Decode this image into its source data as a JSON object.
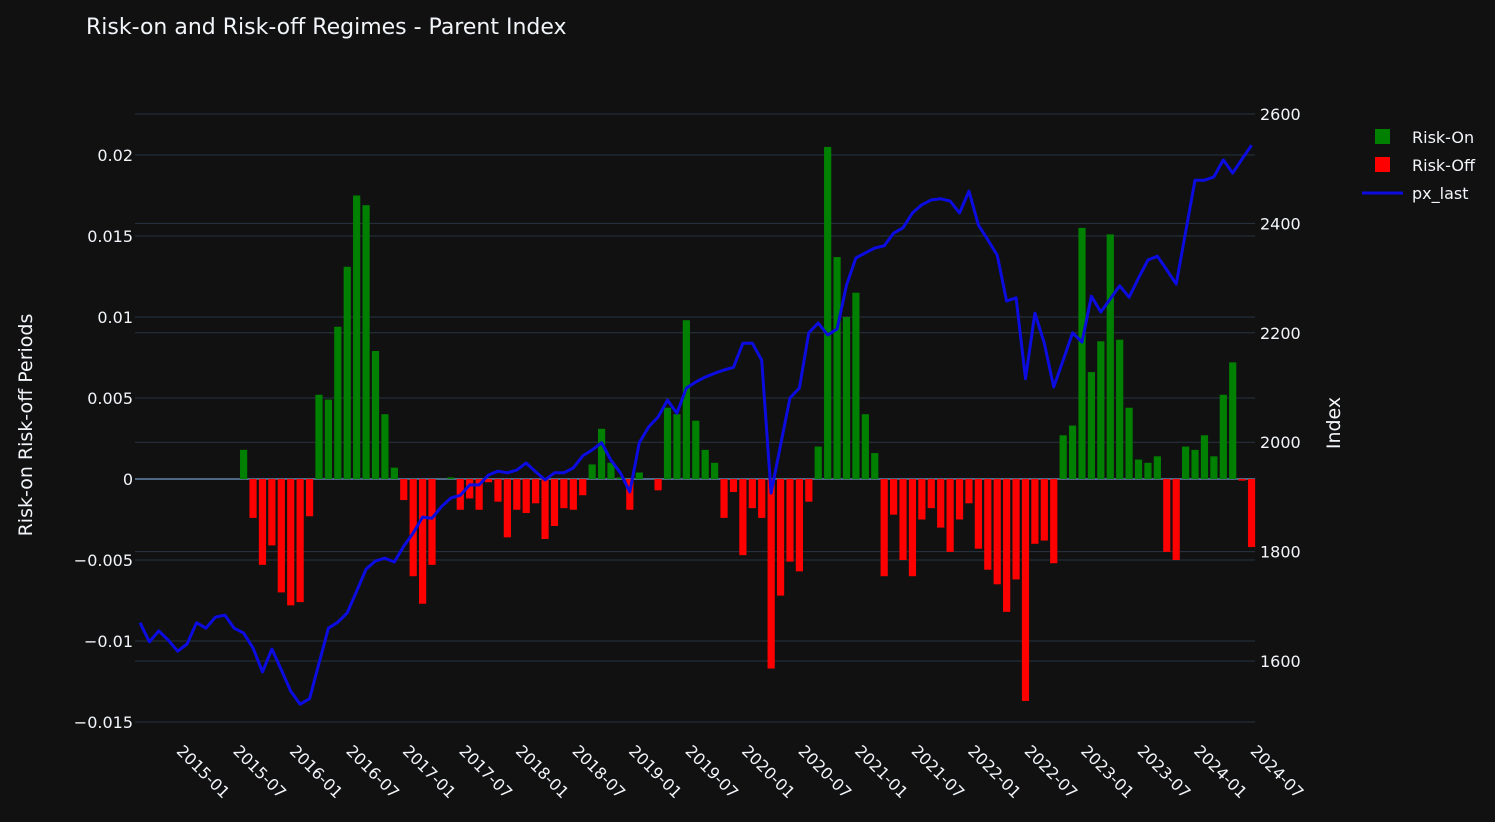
{
  "chart_data": {
    "type": "bar+line",
    "title": "Risk-on and Risk-off Regimes - Parent Index",
    "xlabel": "",
    "ylabel": "Risk-on Risk-off Periods",
    "y2label": "Index",
    "ylim": [
      -0.0155,
      0.0225
    ],
    "y2lim": [
      1520,
      2640
    ],
    "yticks": [
      -0.015,
      -0.01,
      -0.005,
      0,
      0.005,
      0.01,
      0.015,
      0.02
    ],
    "ytick_labels": [
      "−0.015",
      "−0.01",
      "−0.005",
      "0",
      "0.005",
      "0.01",
      "0.015",
      "0.02"
    ],
    "y2ticks": [
      1600,
      1800,
      2000,
      2200,
      2400,
      2600
    ],
    "y2tick_labels": [
      "1600",
      "1800",
      "2000",
      "2200",
      "2400",
      "2600"
    ],
    "xtick_labels": [
      "2015-01",
      "2015-07",
      "2016-01",
      "2016-07",
      "2017-01",
      "2017-07",
      "2018-01",
      "2018-07",
      "2019-01",
      "2019-07",
      "2020-01",
      "2020-07",
      "2021-01",
      "2021-07",
      "2022-01",
      "2022-07",
      "2023-01",
      "2023-07",
      "2024-01",
      "2024-07"
    ],
    "x_start": "2014-09",
    "x_frequency": "monthly",
    "grid": true,
    "legend_position": "top-right",
    "legend": [
      {
        "name": "Risk-On",
        "color": "#008000",
        "kind": "bar"
      },
      {
        "name": "Risk-Off",
        "color": "#ff0000",
        "kind": "bar"
      },
      {
        "name": "px_last",
        "color": "#0c0ce0",
        "kind": "line"
      }
    ],
    "regime_values_note": "positive = Risk-On, negative = Risk-Off",
    "regime_values": [
      0,
      0,
      0,
      0,
      0,
      0,
      0,
      0,
      0,
      0,
      0,
      0.0018,
      -0.0024,
      -0.0053,
      -0.0041,
      -0.007,
      -0.0078,
      -0.0076,
      -0.0023,
      0.0052,
      0.0049,
      0.0094,
      0.0131,
      0.0175,
      0.0169,
      0.0079,
      0.004,
      0.0007,
      -0.0013,
      -0.006,
      -0.0077,
      -0.0053,
      0,
      0.0001,
      -0.0019,
      -0.0012,
      -0.0019,
      -0.0002,
      -0.0014,
      -0.0036,
      -0.0019,
      -0.0021,
      -0.0015,
      -0.0037,
      -0.0029,
      -0.0018,
      -0.0019,
      -0.001,
      0.0009,
      0.0031,
      0.001,
      0.0001,
      -0.0019,
      0.0004,
      0,
      -0.0007,
      0.0044,
      0.004,
      0.0098,
      0.0036,
      0.0018,
      0.001,
      -0.0024,
      -0.0008,
      -0.0047,
      -0.0018,
      -0.0024,
      -0.0117,
      -0.0072,
      -0.0051,
      -0.0057,
      -0.0014,
      0.002,
      0.0205,
      0.0137,
      0.01,
      0.0115,
      0.004,
      0.0016,
      -0.006,
      -0.0022,
      -0.005,
      -0.006,
      -0.0025,
      -0.0018,
      -0.003,
      -0.0045,
      -0.0025,
      -0.0015,
      -0.0043,
      -0.0056,
      -0.0065,
      -0.0082,
      -0.0062,
      -0.0137,
      -0.004,
      -0.0038,
      -0.0052,
      0.0027,
      0.0033,
      0.0155,
      0.0066,
      0.0085,
      0.0151,
      0.0086,
      0.0044,
      0.0012,
      0.001,
      0.0014,
      -0.0045,
      -0.005,
      0.002,
      0.0018,
      0.0027,
      0.0014,
      0.0052,
      0.0072,
      -0.0001,
      -0.0042
    ],
    "px_last": [
      1670,
      1635,
      1655,
      1638,
      1618,
      1631,
      1670,
      1660,
      1680,
      1684,
      1660,
      1651,
      1624,
      1580,
      1622,
      1584,
      1545,
      1521,
      1531,
      1596,
      1660,
      1671,
      1688,
      1728,
      1768,
      1783,
      1788,
      1781,
      1810,
      1834,
      1863,
      1861,
      1882,
      1898,
      1903,
      1922,
      1922,
      1940,
      1947,
      1944,
      1949,
      1962,
      1946,
      1931,
      1944,
      1944,
      1953,
      1975,
      1986,
      1999,
      1967,
      1944,
      1909,
      1999,
      2028,
      2046,
      2077,
      2053,
      2099,
      2110,
      2119,
      2126,
      2132,
      2137,
      2181,
      2181,
      2150,
      1907,
      1995,
      2081,
      2099,
      2200,
      2218,
      2196,
      2207,
      2287,
      2337,
      2346,
      2355,
      2359,
      2382,
      2392,
      2419,
      2434,
      2443,
      2445,
      2441,
      2419,
      2459,
      2397,
      2370,
      2342,
      2258,
      2264,
      2116,
      2236,
      2181,
      2101,
      2150,
      2200,
      2183,
      2267,
      2238,
      2262,
      2286,
      2265,
      2300,
      2333,
      2340,
      2315,
      2289,
      2384,
      2479,
      2479,
      2485,
      2516,
      2492,
      2518,
      2543
    ]
  }
}
